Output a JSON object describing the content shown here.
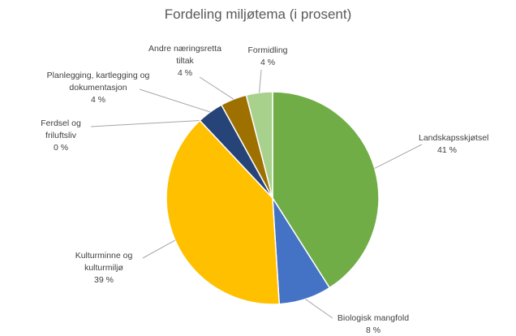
{
  "chart_data": {
    "type": "pie",
    "title": "Fordeling miljøtema (i prosent)",
    "categories": [
      "Landskapsskjøtsel",
      "Biologisk mangfold",
      "Kulturminne og kulturmiljø",
      "Ferdsel og friluftsliv",
      "Planlegging, kartlegging og dokumentasjon",
      "Andre næringsretta tiltak",
      "Formidling"
    ],
    "values": [
      41,
      8,
      39,
      0,
      4,
      4,
      4
    ],
    "value_labels": [
      "41 %",
      "8 %",
      "39 %",
      "0 %",
      "4 %",
      "4 %",
      "4 %"
    ],
    "colors": [
      "#70ad47",
      "#4472c4",
      "#ffc000",
      "#a5a5a5",
      "#264478",
      "#9e7000",
      "#a9d18e"
    ]
  }
}
